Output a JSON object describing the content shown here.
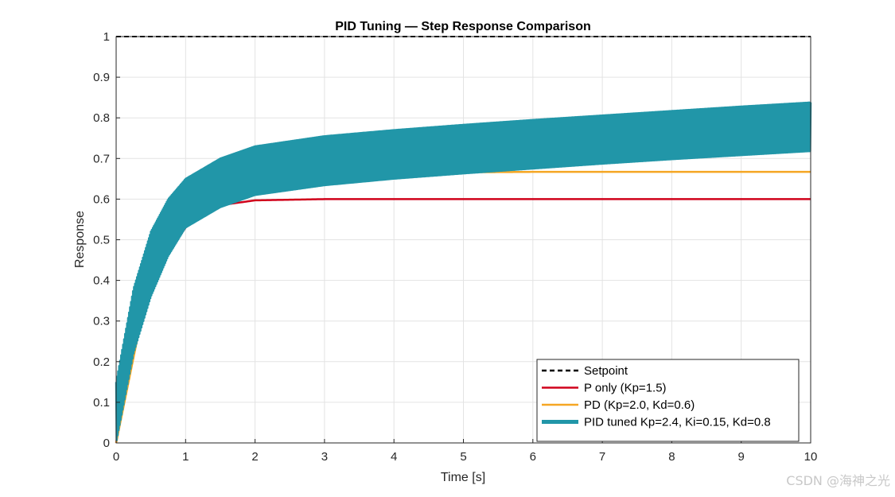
{
  "chart_data": {
    "type": "line",
    "title": "PID Tuning — Step Response Comparison",
    "xlabel": "Time [s]",
    "ylabel": "Response",
    "xlim": [
      0,
      10
    ],
    "ylim": [
      0,
      1
    ],
    "xticks": [
      "0",
      "1",
      "2",
      "3",
      "4",
      "5",
      "6",
      "7",
      "8",
      "9",
      "10"
    ],
    "yticks": [
      "0",
      "0.1",
      "0.2",
      "0.3",
      "0.4",
      "0.5",
      "0.6",
      "0.7",
      "0.8",
      "0.9",
      "1"
    ],
    "grid": true,
    "legend_position": "bottom-right",
    "series": [
      {
        "name": "Setpoint",
        "color": "#000000",
        "style": "dashed",
        "x": [
          0,
          10
        ],
        "y": [
          1,
          1
        ]
      },
      {
        "name": "P only  (Kp=1.5)",
        "color": "#D0021B",
        "style": "solid",
        "x": [
          0,
          0.25,
          0.5,
          0.75,
          1.0,
          1.25,
          1.5,
          2.0,
          3.0,
          5.0,
          10.0
        ],
        "y": [
          0,
          0.23,
          0.38,
          0.47,
          0.53,
          0.565,
          0.585,
          0.597,
          0.6,
          0.6,
          0.6
        ]
      },
      {
        "name": "PD      (Kp=2.0, Kd=0.6)",
        "color": "#F5A623",
        "style": "solid",
        "x": [
          0,
          0.5,
          1.0,
          1.5,
          2.0,
          3.0,
          4.0,
          5.0,
          6.0,
          8.0,
          10.0
        ],
        "y": [
          0,
          0.42,
          0.56,
          0.61,
          0.635,
          0.655,
          0.663,
          0.666,
          0.667,
          0.667,
          0.667
        ]
      },
      {
        "name": "PID tuned  Kp=2.4, Ki=0.15, Kd=0.8",
        "color": "#2196A8",
        "style": "thick-oscillating",
        "x": [
          0,
          0.25,
          0.5,
          0.75,
          1.0,
          1.5,
          2.0,
          3.0,
          4.0,
          5.0,
          6.0,
          7.0,
          8.0,
          9.0,
          10.0
        ],
        "y_upper": [
          0.15,
          0.38,
          0.52,
          0.6,
          0.65,
          0.7,
          0.73,
          0.755,
          0.77,
          0.783,
          0.795,
          0.806,
          0.817,
          0.828,
          0.838
        ],
        "y_lower": [
          0,
          0.22,
          0.36,
          0.46,
          0.53,
          0.58,
          0.61,
          0.634,
          0.65,
          0.663,
          0.675,
          0.687,
          0.698,
          0.708,
          0.718
        ]
      }
    ]
  },
  "watermark": "CSDN @海神之光"
}
